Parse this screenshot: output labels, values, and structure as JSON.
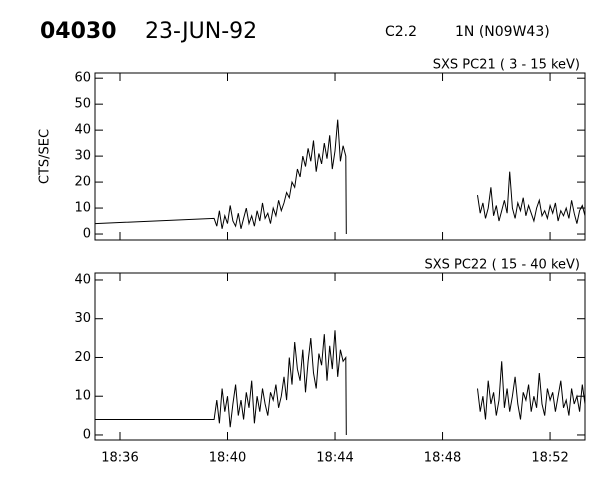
{
  "header": {
    "id": "04030",
    "date": "23-JUN-92",
    "class": "C2.2",
    "region": "1N (N09W43)"
  },
  "chart_data": [
    {
      "type": "line",
      "title": "SXS PC21  (  3 - 15 keV)",
      "y_label": "CTS/SEC",
      "xlim": [
        35.07,
        53.3
      ],
      "ylim": [
        -2.3,
        62
      ],
      "yticks": [
        0,
        10,
        20,
        30,
        40,
        50,
        60
      ],
      "x": [
        35.07,
        39.5,
        39.6,
        39.7,
        39.8,
        39.9,
        40.0,
        40.1,
        40.2,
        40.3,
        40.4,
        40.5,
        40.6,
        40.7,
        40.8,
        40.9,
        41.0,
        41.1,
        41.2,
        41.3,
        41.4,
        41.5,
        41.6,
        41.7,
        41.8,
        41.9,
        42.0,
        42.1,
        42.2,
        42.3,
        42.4,
        42.5,
        42.6,
        42.7,
        42.8,
        42.9,
        43.0,
        43.1,
        43.2,
        43.3,
        43.4,
        43.5,
        43.6,
        43.7,
        43.8,
        43.9,
        44.0,
        44.1,
        44.2,
        44.3,
        44.4,
        44.42,
        46,
        49.3,
        49.4,
        49.5,
        49.6,
        49.7,
        49.8,
        49.9,
        50.0,
        50.1,
        50.2,
        50.3,
        50.4,
        50.5,
        50.6,
        50.7,
        50.8,
        50.9,
        51.0,
        51.1,
        51.2,
        51.3,
        51.4,
        51.5,
        51.6,
        51.7,
        51.8,
        51.9,
        52.0,
        52.1,
        52.2,
        52.3,
        52.4,
        52.5,
        52.6,
        52.7,
        52.8,
        52.9,
        53.0,
        53.1,
        53.2,
        53.3
      ],
      "values": [
        4,
        6,
        3,
        9,
        2,
        7,
        4,
        11,
        5,
        3,
        8,
        2,
        6,
        10,
        4,
        7,
        3,
        9,
        5,
        12,
        6,
        8,
        4,
        10,
        7,
        13,
        9,
        12,
        16,
        14,
        20,
        18,
        25,
        22,
        30,
        26,
        33,
        28,
        36,
        24,
        31,
        27,
        35,
        29,
        38,
        25,
        32,
        44,
        28,
        34,
        30,
        0,
        null,
        15,
        8,
        12,
        6,
        10,
        18,
        7,
        11,
        5,
        9,
        13,
        8,
        24,
        10,
        6,
        12,
        9,
        14,
        7,
        11,
        8,
        5,
        10,
        13,
        7,
        9,
        6,
        11,
        8,
        12,
        5,
        9,
        7,
        10,
        6,
        13,
        8,
        4,
        9,
        11,
        7
      ],
      "color": "#000000"
    },
    {
      "type": "line",
      "title": "SXS PC22  ( 15 - 40 keV)",
      "xlim": [
        35.07,
        53.3
      ],
      "ylim": [
        -1.3,
        41.8
      ],
      "yticks": [
        0,
        10,
        20,
        30,
        40
      ],
      "xticks": [
        {
          "value": 36,
          "label": "18:36"
        },
        {
          "value": 40,
          "label": "18:40"
        },
        {
          "value": 44,
          "label": "18:44"
        },
        {
          "value": 48,
          "label": "18:48"
        },
        {
          "value": 52,
          "label": "18:52"
        }
      ],
      "x": [
        35.07,
        39.5,
        39.6,
        39.7,
        39.8,
        39.9,
        40.0,
        40.1,
        40.2,
        40.3,
        40.4,
        40.5,
        40.6,
        40.7,
        40.8,
        40.9,
        41.0,
        41.1,
        41.2,
        41.3,
        41.4,
        41.5,
        41.6,
        41.7,
        41.8,
        41.9,
        42.0,
        42.1,
        42.2,
        42.3,
        42.4,
        42.5,
        42.6,
        42.7,
        42.8,
        42.9,
        43.0,
        43.1,
        43.2,
        43.3,
        43.4,
        43.5,
        43.6,
        43.7,
        43.8,
        43.9,
        44.0,
        44.1,
        44.2,
        44.3,
        44.4,
        44.42,
        46,
        49.3,
        49.4,
        49.5,
        49.6,
        49.7,
        49.8,
        49.9,
        50.0,
        50.1,
        50.2,
        50.3,
        50.4,
        50.5,
        50.6,
        50.7,
        50.8,
        50.9,
        51.0,
        51.1,
        51.2,
        51.3,
        51.4,
        51.5,
        51.6,
        51.7,
        51.8,
        51.9,
        52.0,
        52.1,
        52.2,
        52.3,
        52.4,
        52.5,
        52.6,
        52.7,
        52.8,
        52.9,
        53.0,
        53.1,
        53.2,
        53.3
      ],
      "values": [
        4,
        4,
        9,
        3,
        12,
        6,
        10,
        2,
        8,
        13,
        5,
        9,
        4,
        11,
        7,
        14,
        3,
        10,
        6,
        12,
        8,
        5,
        11,
        9,
        13,
        7,
        10,
        15,
        9,
        20,
        13,
        24,
        17,
        14,
        22,
        11,
        19,
        25,
        16,
        12,
        21,
        18,
        26,
        14,
        23,
        17,
        27,
        15,
        22,
        19,
        20,
        0,
        null,
        12,
        6,
        10,
        4,
        14,
        8,
        11,
        5,
        9,
        19,
        7,
        12,
        6,
        10,
        15,
        8,
        4,
        11,
        9,
        13,
        6,
        10,
        7,
        16,
        8,
        5,
        12,
        9,
        11,
        6,
        10,
        14,
        7,
        9,
        5,
        12,
        8,
        10,
        6,
        13,
        8
      ],
      "color": "#000000"
    }
  ]
}
